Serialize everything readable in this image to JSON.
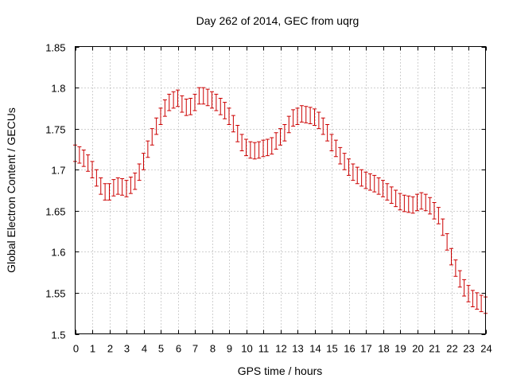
{
  "colors": {
    "series": "#cc0000",
    "axis": "#000000",
    "grid": "#a0a0a0",
    "background": "#ffffff"
  },
  "chart_data": {
    "type": "scatter",
    "title": "Day 262 of 2014, GEC from uqrg",
    "xlabel": "GPS time / hours",
    "ylabel": "Global Electron Content / GECUs",
    "xlim": [
      0,
      24
    ],
    "ylim": [
      1.5,
      1.85
    ],
    "xticks": [
      0,
      1,
      2,
      3,
      4,
      5,
      6,
      7,
      8,
      9,
      10,
      11,
      12,
      13,
      14,
      15,
      16,
      17,
      18,
      19,
      20,
      21,
      22,
      23,
      24
    ],
    "xtick_labels": [
      "0",
      "1",
      "2",
      "3",
      "4",
      "5",
      "6",
      "7",
      "8",
      "9",
      "10",
      "11",
      "12",
      "13",
      "14",
      "15",
      "16",
      "17",
      "18",
      "19",
      "20",
      "21",
      "22",
      "23",
      "24"
    ],
    "yticks": [
      1.5,
      1.55,
      1.6,
      1.65,
      1.7,
      1.75,
      1.8,
      1.85
    ],
    "ytick_labels": [
      "1.5",
      "1.55",
      "1.6",
      "1.65",
      "1.7",
      "1.75",
      "1.8",
      "1.85"
    ],
    "grid": true,
    "legend": "none",
    "error_bars": true,
    "error": 0.01,
    "x": [
      0,
      0.25,
      0.5,
      0.75,
      1,
      1.25,
      1.5,
      1.75,
      2,
      2.25,
      2.5,
      2.75,
      3,
      3.25,
      3.5,
      3.75,
      4,
      4.25,
      4.5,
      4.75,
      5,
      5.25,
      5.5,
      5.75,
      6,
      6.25,
      6.5,
      6.75,
      7,
      7.25,
      7.5,
      7.75,
      8,
      8.25,
      8.5,
      8.75,
      9,
      9.25,
      9.5,
      9.75,
      10,
      10.25,
      10.5,
      10.75,
      11,
      11.25,
      11.5,
      11.75,
      12,
      12.25,
      12.5,
      12.75,
      13,
      13.25,
      13.5,
      13.75,
      14,
      14.25,
      14.5,
      14.75,
      15,
      15.25,
      15.5,
      15.75,
      16,
      16.25,
      16.5,
      16.75,
      17,
      17.25,
      17.5,
      17.75,
      18,
      18.25,
      18.5,
      18.75,
      19,
      19.25,
      19.5,
      19.75,
      20,
      20.25,
      20.5,
      20.75,
      21,
      21.25,
      21.5,
      21.75,
      22,
      22.25,
      22.5,
      22.75,
      23,
      23.25,
      23.5,
      23.75,
      24
    ],
    "y": [
      1.72,
      1.718,
      1.714,
      1.708,
      1.7,
      1.69,
      1.68,
      1.673,
      1.673,
      1.678,
      1.68,
      1.679,
      1.677,
      1.681,
      1.686,
      1.697,
      1.71,
      1.725,
      1.74,
      1.753,
      1.765,
      1.775,
      1.782,
      1.785,
      1.787,
      1.78,
      1.776,
      1.777,
      1.782,
      1.79,
      1.79,
      1.788,
      1.785,
      1.782,
      1.777,
      1.772,
      1.765,
      1.756,
      1.744,
      1.733,
      1.727,
      1.724,
      1.723,
      1.724,
      1.726,
      1.727,
      1.729,
      1.735,
      1.74,
      1.745,
      1.755,
      1.763,
      1.765,
      1.768,
      1.767,
      1.766,
      1.764,
      1.76,
      1.753,
      1.745,
      1.733,
      1.726,
      1.717,
      1.71,
      1.703,
      1.697,
      1.693,
      1.69,
      1.687,
      1.685,
      1.683,
      1.68,
      1.677,
      1.673,
      1.669,
      1.665,
      1.661,
      1.659,
      1.658,
      1.657,
      1.66,
      1.662,
      1.66,
      1.656,
      1.65,
      1.644,
      1.63,
      1.612,
      1.594,
      1.58,
      1.567,
      1.556,
      1.549,
      1.543,
      1.54,
      1.537,
      1.535
    ]
  }
}
